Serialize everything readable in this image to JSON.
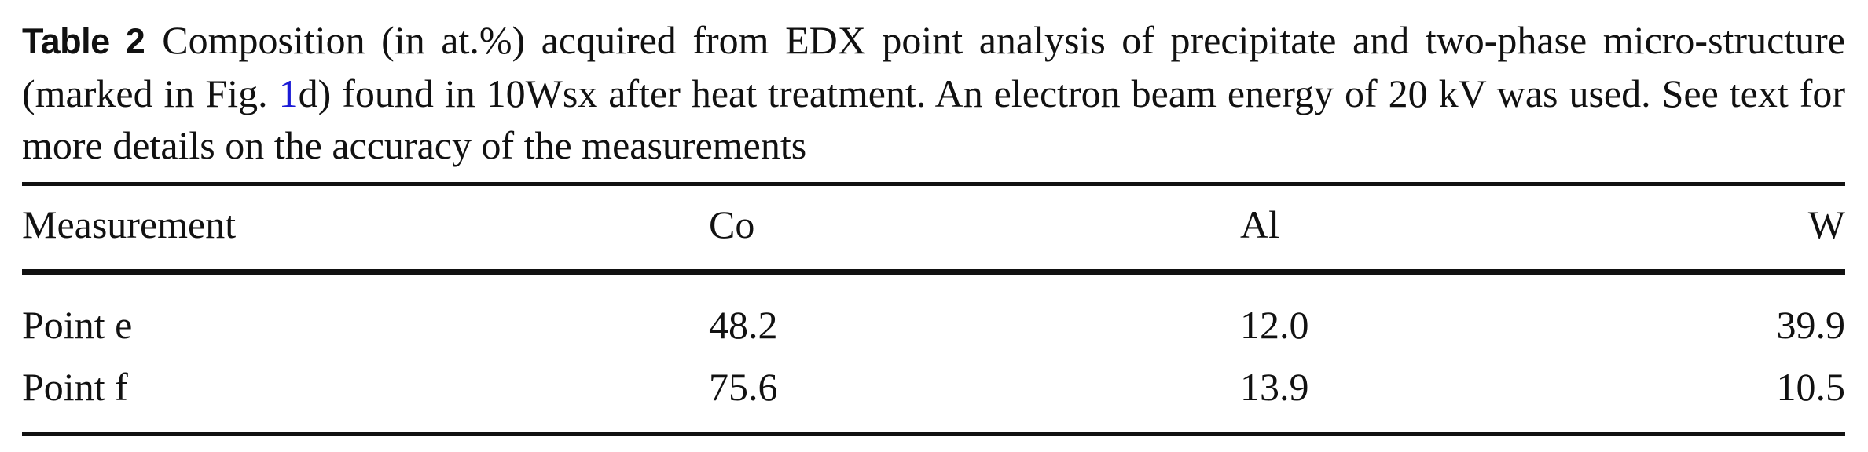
{
  "table": {
    "label": "Table 2",
    "caption_part1": "Composition (in at.%) acquired from EDX point analysis of precipitate and two-phase micro-structure (marked in Fig. ",
    "caption_fig_ref": "1",
    "caption_part2": "d) found in 10Wsx after heat treatment. An electron beam energy of 20 kV was used. See text for more details on the accuracy of the measurements",
    "headers": [
      "Measurement",
      "Co",
      "Al",
      "W"
    ],
    "rows": [
      [
        "Point e",
        "48.2",
        "12.0",
        "39.9"
      ],
      [
        "Point f",
        "75.6",
        "13.9",
        "10.5"
      ]
    ],
    "colors": {
      "text": "#111111",
      "link": "#1a1ad6"
    }
  }
}
